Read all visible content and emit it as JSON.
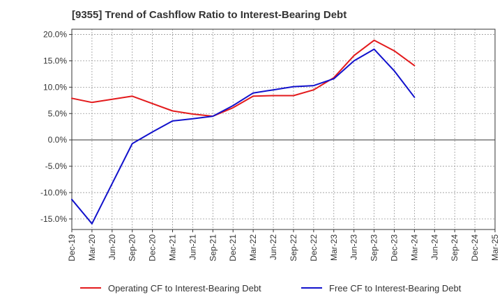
{
  "chart_data": {
    "type": "line",
    "title": "[9355]  Trend of Cashflow Ratio to Interest-Bearing Debt",
    "xlabel": "",
    "ylabel": "",
    "ylim": [
      -17.0,
      21.0
    ],
    "y_ticks": [
      "20.0%",
      "15.0%",
      "10.0%",
      "5.0%",
      "0.0%",
      "-5.0%",
      "-10.0%",
      "-15.0%"
    ],
    "y_tick_values": [
      20,
      15,
      10,
      5,
      0,
      -5,
      -10,
      -15
    ],
    "categories": [
      "Dec-19",
      "Mar-20",
      "Jun-20",
      "Sep-20",
      "Dec-20",
      "Mar-21",
      "Jun-21",
      "Sep-21",
      "Dec-21",
      "Mar-22",
      "Jun-22",
      "Sep-22",
      "Dec-22",
      "Mar-23",
      "Jun-23",
      "Sep-23",
      "Dec-23",
      "Mar-24",
      "Jun-24",
      "Sep-24",
      "Dec-24",
      "Mar-25"
    ],
    "grid": true,
    "legend_position": "bottom",
    "series": [
      {
        "name": "Operating CF to Interest-Bearing Debt",
        "color": "#e31a1c",
        "values": [
          7.9,
          7.1,
          7.7,
          8.3,
          6.9,
          5.5,
          4.9,
          4.5,
          6.1,
          8.3,
          8.4,
          8.4,
          9.5,
          11.8,
          16.0,
          18.9,
          16.9,
          14.1,
          null,
          null,
          null,
          null
        ]
      },
      {
        "name": "Free CF to Interest-Bearing Debt",
        "color": "#1111cc",
        "values": [
          -11.3,
          -15.9,
          -8.3,
          -0.7,
          1.5,
          3.6,
          4.0,
          4.5,
          6.5,
          8.9,
          9.5,
          10.1,
          10.3,
          11.6,
          15.0,
          17.2,
          13.1,
          8.1,
          null,
          null,
          null,
          null
        ]
      }
    ]
  }
}
